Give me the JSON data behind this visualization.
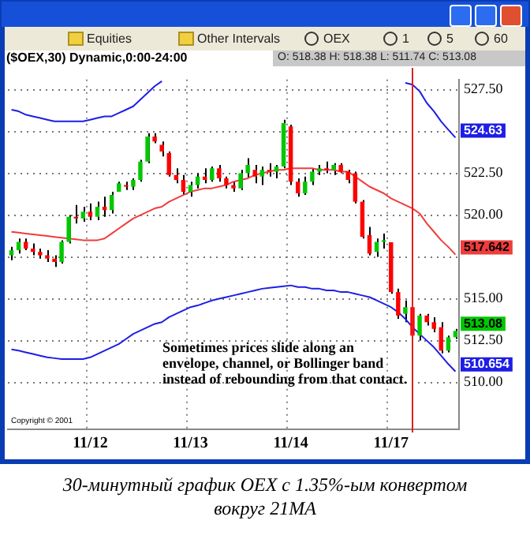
{
  "chart_data": {
    "type": "candlestick",
    "title": "($OEX,30) Dynamic,0:00-24:00",
    "subtitle": "O: 518.38   H: 518.38   L: 511.74   C: 513.08",
    "categories": [
      null,
      null,
      null,
      null,
      null,
      null,
      null,
      null,
      null,
      null,
      null,
      "11/12",
      null,
      null,
      null,
      null,
      null,
      null,
      null,
      null,
      null,
      null,
      null,
      null,
      null,
      "11/13",
      null,
      null,
      null,
      null,
      null,
      null,
      null,
      null,
      null,
      null,
      null,
      null,
      null,
      "11/14",
      null,
      null,
      null,
      null,
      null,
      null,
      null,
      null,
      null,
      null,
      null,
      null,
      null,
      "11/17",
      null,
      null,
      null,
      null,
      null,
      null,
      null,
      null,
      null
    ],
    "ohlc": [
      [
        517.6,
        518.1,
        517.3,
        517.9
      ],
      [
        517.9,
        518.6,
        517.7,
        518.4
      ],
      [
        518.4,
        518.6,
        517.9,
        518.0
      ],
      [
        518.0,
        518.3,
        517.6,
        517.8
      ],
      [
        517.8,
        518.0,
        517.4,
        517.6
      ],
      [
        517.6,
        517.9,
        517.2,
        517.4
      ],
      [
        517.4,
        517.6,
        516.9,
        517.2
      ],
      [
        517.2,
        518.5,
        517.1,
        518.4
      ],
      [
        518.4,
        520.0,
        518.3,
        519.9
      ],
      [
        519.9,
        520.6,
        519.5,
        519.8
      ],
      [
        519.8,
        520.5,
        519.6,
        520.2
      ],
      [
        520.2,
        520.7,
        519.7,
        519.9
      ],
      [
        519.9,
        520.8,
        519.7,
        520.5
      ],
      [
        520.5,
        521.1,
        519.9,
        520.3
      ],
      [
        520.3,
        521.4,
        520.1,
        521.2
      ],
      [
        521.4,
        522.0,
        521.4,
        521.9
      ],
      [
        521.8,
        522.0,
        521.5,
        521.7
      ],
      [
        521.7,
        522.2,
        521.5,
        522.1
      ],
      [
        522.1,
        523.3,
        522.0,
        523.2
      ],
      [
        523.2,
        524.9,
        523.1,
        524.7
      ],
      [
        524.7,
        524.9,
        524.3,
        524.4
      ],
      [
        524.2,
        524.4,
        523.5,
        523.8
      ],
      [
        523.7,
        523.8,
        522.3,
        522.4
      ],
      [
        522.4,
        522.8,
        521.9,
        522.1
      ],
      [
        522.1,
        522.4,
        521.2,
        521.4
      ],
      [
        521.4,
        522.0,
        521.1,
        521.8
      ],
      [
        521.8,
        522.5,
        521.6,
        522.3
      ],
      [
        522.3,
        522.8,
        521.9,
        522.1
      ],
      [
        522.1,
        522.9,
        522.0,
        522.8
      ],
      [
        522.8,
        523.0,
        522.0,
        522.2
      ],
      [
        522.2,
        522.3,
        521.6,
        521.8
      ],
      [
        521.8,
        522.0,
        521.4,
        521.6
      ],
      [
        521.6,
        522.7,
        521.5,
        522.5
      ],
      [
        522.5,
        523.4,
        522.2,
        523.0
      ],
      [
        522.7,
        523.0,
        521.9,
        522.3
      ],
      [
        522.3,
        522.9,
        521.8,
        522.7
      ],
      [
        522.7,
        523.1,
        522.3,
        522.6
      ],
      [
        522.6,
        523.0,
        522.2,
        522.9
      ],
      [
        522.9,
        525.7,
        522.8,
        525.5
      ],
      [
        525.3,
        525.4,
        521.8,
        522.0
      ],
      [
        522.0,
        522.2,
        521.1,
        521.3
      ],
      [
        521.3,
        522.3,
        521.2,
        522.0
      ],
      [
        522.0,
        522.8,
        521.8,
        522.6
      ],
      [
        522.6,
        523.0,
        522.4,
        522.8
      ],
      [
        522.8,
        523.2,
        522.5,
        522.7
      ],
      [
        522.7,
        523.1,
        522.4,
        523.0
      ],
      [
        523.0,
        523.1,
        522.5,
        522.6
      ],
      [
        522.6,
        522.7,
        521.9,
        522.1
      ],
      [
        522.5,
        522.6,
        520.7,
        520.8
      ],
      [
        520.8,
        520.9,
        518.6,
        518.7
      ],
      [
        518.8,
        519.3,
        517.6,
        517.7
      ],
      [
        517.8,
        518.6,
        517.5,
        518.4
      ],
      [
        518.4,
        518.9,
        518.0,
        518.5
      ],
      [
        518.38,
        518.38,
        515.3,
        515.4
      ],
      [
        515.4,
        515.6,
        513.8,
        514.0
      ],
      [
        514.1,
        514.9,
        513.6,
        514.5
      ],
      [
        514.5,
        514.6,
        512.7,
        512.8
      ],
      [
        512.8,
        514.1,
        512.5,
        514.0
      ],
      [
        514.0,
        514.1,
        513.4,
        513.6
      ],
      [
        513.6,
        513.9,
        513.0,
        513.2
      ],
      [
        513.3,
        513.6,
        511.74,
        511.9
      ],
      [
        511.9,
        512.8,
        511.8,
        512.7
      ],
      [
        512.7,
        513.2,
        512.6,
        513.08
      ]
    ],
    "colors": [
      "#00c800",
      "#00c800",
      "#ff0000",
      "#ff0000",
      "#ff0000",
      "#ff0000",
      "#ff0000",
      "#00c800",
      "#00c800",
      "#ff0000",
      "#00c800",
      "#ff0000",
      "#00c800",
      "#ff0000",
      "#00c800",
      "#00c800",
      "#ff0000",
      "#00c800",
      "#00c800",
      "#00c800",
      "#ff0000",
      "#ff0000",
      "#ff0000",
      "#ff0000",
      "#ff0000",
      "#00c800",
      "#00c800",
      "#ff0000",
      "#00c800",
      "#ff0000",
      "#ff0000",
      "#ff0000",
      "#00c800",
      "#00c800",
      "#ff0000",
      "#00c800",
      "#ff0000",
      "#00c800",
      "#00c800",
      "#ff0000",
      "#ff0000",
      "#00c800",
      "#00c800",
      "#00c800",
      "#ff0000",
      "#00c800",
      "#ff0000",
      "#ff0000",
      "#ff0000",
      "#ff0000",
      "#ff0000",
      "#00c800",
      "#00c800",
      "#ff0000",
      "#ff0000",
      "#00c800",
      "#ff0000",
      "#00c800",
      "#ff0000",
      "#ff0000",
      "#ff0000",
      "#00c800",
      "#00c800"
    ],
    "value_labels": [
      null,
      null,
      null,
      null,
      null,
      null,
      null,
      null,
      null,
      null,
      null,
      null,
      null,
      null,
      null,
      null,
      null,
      null,
      null,
      null,
      null,
      null,
      null,
      null,
      null,
      null,
      null,
      null,
      null,
      null,
      null,
      null,
      null,
      null,
      null,
      null,
      null,
      null,
      null,
      null,
      null,
      null,
      null,
      null,
      null,
      null,
      null,
      null,
      null,
      null,
      null,
      null,
      null,
      null,
      null,
      null,
      null,
      null,
      null,
      null,
      null,
      null,
      "513.08"
    ],
    "series": [
      {
        "type": "line",
        "color": "#f03c3c",
        "values": [
          519.0,
          518.95,
          518.9,
          518.85,
          518.8,
          518.75,
          518.7,
          518.65,
          518.6,
          518.55,
          518.5,
          518.5,
          518.5,
          518.6,
          518.9,
          519.2,
          519.5,
          519.8,
          520.0,
          520.2,
          520.4,
          520.5,
          520.8,
          521.0,
          521.2,
          521.4,
          521.5,
          521.6,
          521.6,
          521.7,
          521.8,
          522.0,
          522.1,
          522.2,
          522.4,
          522.5,
          522.6,
          522.7,
          522.7,
          522.8,
          522.8,
          522.8,
          522.8,
          522.7,
          522.7,
          522.7,
          522.6,
          522.6,
          522.3,
          522.0,
          521.7,
          521.5,
          521.3,
          521.0,
          520.8,
          520.6,
          520.4,
          520.1,
          519.5,
          519.0,
          518.5,
          518.1,
          517.642
        ],
        "value_labels": [
          null,
          null,
          null,
          null,
          null,
          null,
          null,
          null,
          null,
          null,
          null,
          null,
          null,
          null,
          null,
          null,
          null,
          null,
          null,
          null,
          null,
          null,
          null,
          null,
          null,
          null,
          null,
          null,
          null,
          null,
          null,
          null,
          null,
          null,
          null,
          null,
          null,
          null,
          null,
          null,
          null,
          null,
          null,
          null,
          null,
          null,
          null,
          null,
          null,
          null,
          null,
          null,
          null,
          null,
          null,
          null,
          null,
          null,
          null,
          null,
          null,
          null,
          "517.642"
        ]
      },
      {
        "type": "line",
        "color": "#1e1ee6",
        "values": [
          526.3,
          526.2,
          526.0,
          525.9,
          525.8,
          525.7,
          525.6,
          525.6,
          525.6,
          525.6,
          525.6,
          525.7,
          525.8,
          525.9,
          525.9,
          526.1,
          526.3,
          526.5,
          526.9,
          527.3,
          527.7,
          528.0,
          null,
          null,
          null,
          null,
          null,
          null,
          null,
          null,
          null,
          null,
          null,
          null,
          null,
          null,
          null,
          null,
          null,
          null,
          null,
          null,
          null,
          null,
          null,
          null,
          null,
          null,
          null,
          null,
          null,
          null,
          null,
          null,
          null,
          527.9,
          527.8,
          527.4,
          526.7,
          526.2,
          525.6,
          525.1,
          524.63
        ],
        "value_labels": [
          null,
          null,
          null,
          null,
          null,
          null,
          null,
          null,
          null,
          null,
          null,
          null,
          null,
          null,
          null,
          null,
          null,
          null,
          null,
          null,
          null,
          null,
          null,
          null,
          null,
          null,
          null,
          null,
          null,
          null,
          null,
          null,
          null,
          null,
          null,
          null,
          null,
          null,
          null,
          null,
          null,
          null,
          null,
          null,
          null,
          null,
          null,
          null,
          null,
          null,
          null,
          null,
          null,
          null,
          null,
          null,
          null,
          null,
          null,
          null,
          null,
          null,
          "524.63"
        ]
      },
      {
        "type": "line",
        "color": "#1e1ee6",
        "values": [
          511.97,
          511.9,
          511.8,
          511.7,
          511.6,
          511.5,
          511.45,
          511.4,
          511.4,
          511.4,
          511.4,
          511.5,
          511.7,
          511.9,
          512.1,
          512.3,
          512.6,
          512.9,
          513.1,
          513.3,
          513.5,
          513.6,
          513.9,
          514.1,
          514.3,
          514.5,
          514.6,
          514.75,
          514.9,
          515.0,
          515.1,
          515.2,
          515.3,
          515.4,
          515.5,
          515.6,
          515.65,
          515.7,
          515.75,
          515.8,
          515.7,
          515.7,
          515.6,
          515.6,
          515.5,
          515.5,
          515.4,
          515.4,
          515.3,
          515.2,
          515.1,
          514.9,
          514.7,
          514.5,
          514.2,
          513.8,
          513.3,
          512.9,
          512.5,
          512.1,
          511.6,
          511.1,
          510.654
        ],
        "value_labels": [
          null,
          null,
          null,
          null,
          null,
          null,
          null,
          null,
          null,
          null,
          null,
          null,
          null,
          null,
          null,
          null,
          null,
          null,
          null,
          null,
          null,
          null,
          null,
          null,
          null,
          null,
          null,
          null,
          null,
          null,
          null,
          null,
          null,
          null,
          null,
          null,
          null,
          null,
          null,
          null,
          null,
          null,
          null,
          null,
          null,
          null,
          null,
          null,
          null,
          null,
          null,
          null,
          null,
          null,
          null,
          null,
          null,
          null,
          null,
          null,
          null,
          null,
          "510.654"
        ]
      }
    ],
    "ylim": [
      507.2,
      528.1
    ],
    "yticks": [
      {
        "value": 510,
        "label": "510.00"
      },
      {
        "value": 512.5,
        "label": "512.50"
      },
      {
        "value": 515,
        "label": "515.00"
      },
      {
        "value": 517.5,
        "label": null
      },
      {
        "value": 520,
        "label": "520.00"
      },
      {
        "value": 522.5,
        "label": "522.50"
      },
      {
        "value": 525,
        "label": null
      },
      {
        "value": 527.5,
        "label": "527.50"
      }
    ],
    "grid": true,
    "legend": false,
    "annotations": [
      "Sometimes prices slide along an envelope, channel, or Bollinger band instead of rebounding from that contact.",
      "Copyright © 2001",
      "30-минутный график OEX с 1.35%-ым конвертом вокруг 21MA",
      "Equities",
      "Other Intervals",
      "OEX",
      "1",
      "5",
      "60"
    ]
  }
}
